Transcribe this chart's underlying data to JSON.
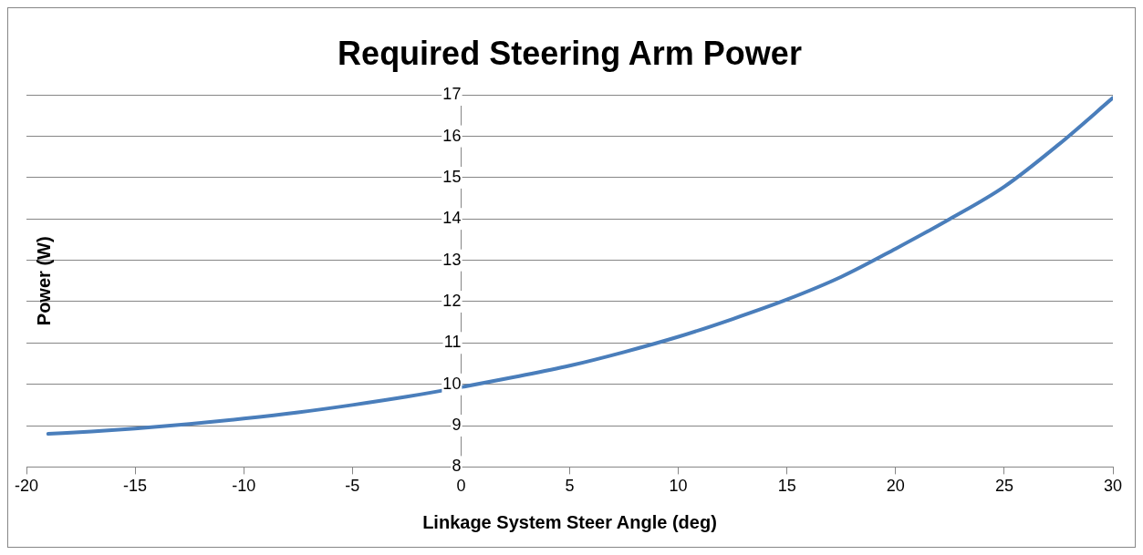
{
  "chart_data": {
    "type": "line",
    "title": "Required Steering Arm Power",
    "xlabel": "Linkage System Steer Angle (deg)",
    "ylabel": "Power (W)",
    "x": [
      -19,
      -17,
      -15,
      -12.5,
      -10,
      -7.5,
      -5,
      -2.5,
      0,
      2.5,
      5,
      7.5,
      10,
      12.5,
      15,
      17.5,
      20,
      22.5,
      25,
      27.5,
      30
    ],
    "series": [
      {
        "color": "#4a7ebb",
        "values": [
          8.8,
          8.86,
          8.93,
          9.04,
          9.17,
          9.32,
          9.5,
          9.7,
          9.93,
          10.18,
          10.45,
          10.78,
          11.15,
          11.58,
          12.05,
          12.6,
          13.28,
          14.0,
          14.78,
          15.8,
          16.93
        ]
      }
    ],
    "xlim": [
      -20,
      30
    ],
    "xticks": [
      -20,
      -15,
      -10,
      -5,
      0,
      5,
      10,
      15,
      20,
      25,
      30
    ],
    "ylim": [
      8,
      17
    ],
    "yticks": [
      8,
      9,
      10,
      11,
      12,
      13,
      14,
      15,
      16,
      17
    ],
    "grid": "y",
    "legend": false,
    "marker": "none",
    "line_style": "solid"
  }
}
